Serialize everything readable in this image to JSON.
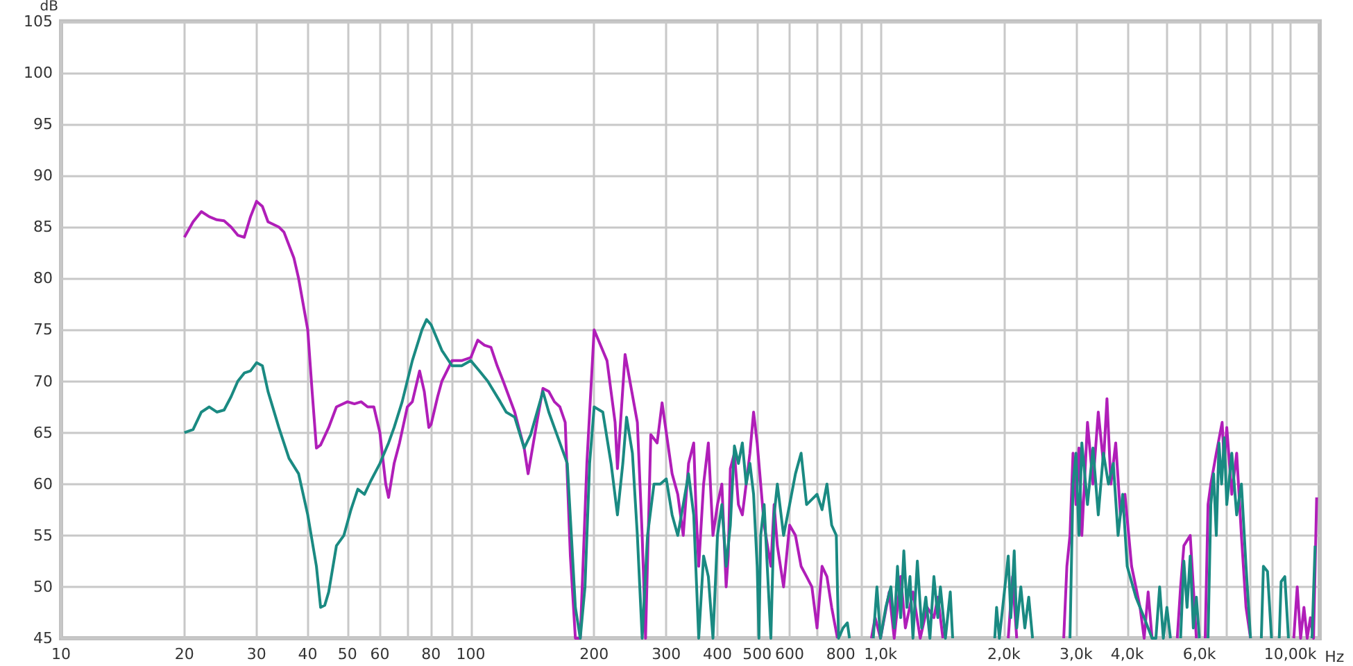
{
  "chart_data": {
    "type": "line",
    "xlabel": "Hz",
    "ylabel": "dB",
    "log": "x",
    "grid": true,
    "marker": "none",
    "line_style": "solid",
    "xlim": [
      10,
      11800
    ],
    "ylim": [
      45,
      105
    ],
    "xticks": [
      10,
      20,
      30,
      40,
      50,
      60,
      {
        "value": 70,
        "label": null
      },
      80,
      {
        "value": 90,
        "label": null
      },
      100,
      200,
      300,
      400,
      500,
      600,
      {
        "value": 700,
        "label": null
      },
      800,
      {
        "value": 900,
        "label": null
      },
      {
        "value": 1000,
        "label": "1,0k"
      },
      {
        "value": 2000,
        "label": "2,0k"
      },
      {
        "value": 3000,
        "label": "3,0k"
      },
      {
        "value": 4000,
        "label": "4,0k"
      },
      {
        "value": 5000,
        "label": null
      },
      {
        "value": 6000,
        "label": "6,0k"
      },
      {
        "value": 7000,
        "label": null
      },
      {
        "value": 8000,
        "label": null
      },
      {
        "value": 9000,
        "label": null
      },
      {
        "value": 10000,
        "label": "10,00k"
      }
    ],
    "yticks": [
      45,
      50,
      55,
      60,
      65,
      70,
      75,
      80,
      85,
      90,
      95,
      100,
      105
    ],
    "series": [
      {
        "color": "#b01eb8",
        "x": [
          20,
          21,
          22,
          23,
          24,
          25,
          26,
          27,
          28,
          29,
          30,
          31,
          32,
          34,
          35,
          37,
          38,
          40,
          41,
          42,
          43,
          45,
          47,
          50,
          52,
          54,
          56,
          58,
          60,
          62,
          63,
          65,
          67,
          70,
          72,
          75,
          77,
          79,
          80,
          83,
          85,
          90,
          95,
          100,
          104,
          108,
          112,
          116,
          120,
          128,
          135,
          138,
          145,
          150,
          155,
          160,
          165,
          170,
          175,
          180,
          185,
          192,
          200,
          215,
          225,
          228,
          238,
          255,
          262,
          267,
          275,
          285,
          293,
          310,
          320,
          330,
          340,
          350,
          355,
          360,
          370,
          380,
          390,
          400,
          410,
          420,
          425,
          430,
          440,
          450,
          460,
          470,
          480,
          490,
          500,
          510,
          520,
          540,
          550,
          560,
          580,
          600,
          620,
          640,
          660,
          680,
          700,
          720,
          740,
          760,
          785,
          900,
          950,
          970,
          1000,
          1050,
          1080,
          1120,
          1150,
          1200,
          1250,
          1300,
          1350,
          1380,
          1420,
          1470,
          2000,
          2050,
          2100,
          2150,
          2200,
          2750,
          2800,
          2850,
          2900,
          2950,
          3000,
          3050,
          3100,
          3200,
          3300,
          3400,
          3500,
          3570,
          3650,
          3750,
          3850,
          3950,
          4100,
          4300,
          4400,
          4500,
          4600,
          5000,
          5300,
          5400,
          5500,
          5700,
          5800,
          5900,
          6100,
          6200,
          6300,
          6400,
          6600,
          6820,
          6900,
          7000,
          7200,
          7400,
          7600,
          7800,
          8000,
          8200,
          10100,
          10200,
          10400,
          10600,
          10800,
          11000,
          11200,
          11400,
          11600
        ],
        "values": [
          84,
          85.5,
          86.5,
          86,
          85.7,
          85.6,
          85,
          84.2,
          84,
          86,
          87.5,
          87,
          85.5,
          85,
          84.5,
          82,
          80,
          75,
          69,
          63.5,
          63.8,
          65.5,
          67.5,
          68,
          67.8,
          68,
          67.5,
          67.5,
          65,
          60,
          58.7,
          62,
          64,
          67.5,
          68,
          71,
          69,
          65.5,
          65.8,
          68.5,
          70,
          72,
          72,
          72.3,
          74,
          73.5,
          73.3,
          71.5,
          70,
          67,
          63.5,
          61,
          66,
          69.3,
          69,
          68,
          67.5,
          66,
          53,
          45,
          45,
          62,
          75,
          72,
          66,
          61.5,
          72.6,
          66,
          55,
          45,
          64.8,
          64,
          67.9,
          61,
          59,
          55,
          62,
          64,
          57,
          52,
          60,
          64,
          55,
          58,
          60,
          50,
          53,
          61.5,
          63,
          58,
          57,
          60,
          63,
          67,
          64,
          60,
          56,
          52,
          58,
          54,
          50,
          56,
          55,
          52,
          51,
          50,
          46,
          52,
          51,
          48,
          45,
          null,
          45,
          47,
          45,
          49.5,
          45,
          51,
          46,
          49.5,
          45,
          48,
          47,
          49,
          45,
          null,
          null,
          45,
          51,
          45,
          null,
          null,
          45,
          52,
          55,
          63,
          58,
          63.5,
          55,
          66,
          60,
          67,
          62,
          68.3,
          60,
          64,
          57,
          59,
          52,
          48,
          45,
          49.5,
          45,
          null,
          45,
          50,
          54,
          55,
          50,
          45,
          null,
          45,
          58,
          60,
          63,
          66,
          62,
          65.5,
          59,
          63,
          55,
          48,
          45,
          null,
          null,
          45,
          50,
          45,
          48,
          45,
          47,
          45,
          58.7
        ]
      },
      {
        "color": "#1a8a82",
        "x": [
          20,
          21,
          22,
          23,
          24,
          25,
          26,
          27,
          28,
          29,
          30,
          31,
          32,
          34,
          36,
          38,
          40,
          42,
          43,
          44,
          45,
          47,
          49,
          51,
          53,
          55,
          57,
          60,
          63,
          65,
          68,
          72,
          76,
          78,
          80,
          85,
          90,
          95,
          100,
          105,
          110,
          118,
          122,
          128,
          135,
          140,
          150,
          155,
          165,
          172,
          176,
          180,
          185,
          190,
          195,
          200,
          210,
          220,
          228,
          235,
          240,
          248,
          255,
          262,
          270,
          280,
          290,
          300,
          310,
          320,
          330,
          340,
          350,
          360,
          370,
          380,
          390,
          400,
          410,
          420,
          430,
          440,
          450,
          460,
          470,
          480,
          490,
          500,
          505,
          510,
          520,
          540,
          550,
          560,
          580,
          600,
          620,
          640,
          660,
          680,
          700,
          720,
          740,
          760,
          780,
          790,
          810,
          830,
          840,
          900,
          960,
          980,
          1000,
          1030,
          1060,
          1080,
          1100,
          1120,
          1140,
          1160,
          1180,
          1200,
          1230,
          1260,
          1290,
          1320,
          1350,
          1380,
          1400,
          1440,
          1480,
          1500,
          1550,
          1880,
          1900,
          1920,
          1950,
          2050,
          2080,
          2120,
          2150,
          2200,
          2250,
          2300,
          2350,
          2400,
          2850,
          2900,
          2950,
          3000,
          3050,
          3100,
          3200,
          3300,
          3400,
          3500,
          3600,
          3700,
          3800,
          3900,
          4000,
          4200,
          4400,
          4600,
          4700,
          4800,
          4900,
          5000,
          5100,
          5200,
          5400,
          5500,
          5600,
          5700,
          5800,
          5900,
          6000,
          6100,
          6300,
          6400,
          6500,
          6600,
          6700,
          6800,
          6900,
          7000,
          7200,
          7400,
          7600,
          7800,
          8000,
          8200,
          8500,
          8600,
          8800,
          9000,
          9200,
          9400,
          9500,
          9700,
          9900,
          10200,
          11300,
          11500
        ],
        "values": [
          65,
          65.3,
          67,
          67.5,
          67,
          67.2,
          68.5,
          70,
          70.8,
          71,
          71.8,
          71.5,
          69,
          65.5,
          62.5,
          61,
          57,
          52,
          48,
          48.2,
          49.5,
          54,
          55,
          57.5,
          59.5,
          59,
          60.3,
          62,
          64,
          65.5,
          68,
          72,
          75,
          76,
          75.5,
          73,
          71.5,
          71.5,
          72,
          71,
          70,
          68,
          67,
          66.5,
          63.5,
          64.8,
          69,
          67,
          64,
          62,
          55,
          48,
          45,
          50,
          62,
          67.5,
          67,
          62,
          57,
          62,
          66.5,
          63,
          55,
          45,
          55,
          60,
          60,
          60.5,
          57,
          55,
          58,
          61,
          57,
          45,
          53,
          51,
          45,
          55,
          58,
          52,
          56,
          63.7,
          62,
          64,
          60,
          62,
          59,
          52,
          45,
          55,
          58,
          45,
          57,
          60,
          55,
          58,
          61,
          63,
          58,
          58.5,
          59,
          57.5,
          60,
          56,
          55,
          45,
          46,
          46.5,
          45,
          null,
          45,
          50,
          45,
          48,
          50,
          46,
          52,
          47,
          53.5,
          48,
          51,
          45,
          52.5,
          46,
          49,
          45,
          51,
          47,
          50,
          45,
          49.5,
          45,
          null,
          null,
          45,
          48,
          45,
          53,
          47,
          53.5,
          46,
          50,
          46,
          49,
          45,
          null,
          null,
          45,
          60,
          63,
          55,
          64,
          58,
          63.5,
          57,
          63,
          60,
          62,
          55,
          59,
          52,
          49,
          47,
          45,
          45,
          50,
          45,
          48,
          45,
          null,
          45,
          52.5,
          48,
          53,
          46,
          49,
          45,
          null,
          45,
          58,
          61,
          55,
          64,
          60,
          64.5,
          58,
          63,
          57,
          60,
          52,
          45,
          null,
          45,
          52,
          51.5,
          45,
          null,
          45,
          50.5,
          51,
          45,
          null,
          45,
          54
        ]
      }
    ]
  }
}
